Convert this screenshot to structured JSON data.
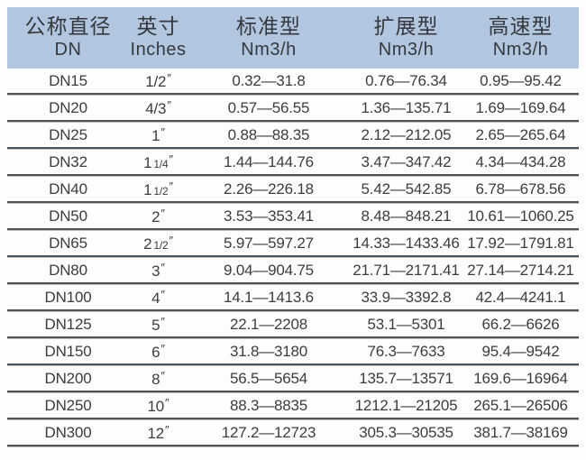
{
  "colors": {
    "header_bg": "#b2c6e0",
    "ink": "#3a3d40",
    "header_ink": "#35383c",
    "line_dark": "#505356",
    "line_light": "#b9bcbe",
    "paper": "#fdfdfd"
  },
  "table": {
    "inch_mark": "″",
    "header": {
      "columns": [
        {
          "line1": "公称直径",
          "line2": "DN"
        },
        {
          "line1": "英寸",
          "line2": "Inches"
        },
        {
          "line1": "标准型",
          "line2": "Nm3/h"
        },
        {
          "line1": "扩展型",
          "line2": "Nm3/h"
        },
        {
          "line1": "高速型",
          "line2": "Nm3/h"
        }
      ]
    },
    "rows": [
      {
        "dn": "DN15",
        "inch_main": "1/2",
        "inch_frac": "",
        "standard": "0.32—31.8",
        "extended": "0.76—76.34",
        "high_speed": "0.95—95.42"
      },
      {
        "dn": "DN20",
        "inch_main": "4/3",
        "inch_frac": "",
        "standard": "0.57—56.55",
        "extended": "1.36—135.71",
        "high_speed": "1.69—169.64"
      },
      {
        "dn": "DN25",
        "inch_main": "1",
        "inch_frac": "",
        "standard": "0.88—88.35",
        "extended": "2.12—212.05",
        "high_speed": "2.65—265.64"
      },
      {
        "dn": "DN32",
        "inch_main": "1",
        "inch_frac": "1/4",
        "standard": "1.44—144.76",
        "extended": "3.47—347.42",
        "high_speed": "4.34—434.28"
      },
      {
        "dn": "DN40",
        "inch_main": "1",
        "inch_frac": "1/2",
        "standard": "2.26—226.18",
        "extended": "5.42—542.85",
        "high_speed": "6.78—678.56"
      },
      {
        "dn": "DN50",
        "inch_main": "2",
        "inch_frac": "",
        "standard": "3.53—353.41",
        "extended": "8.48—848.21",
        "high_speed": "10.61—1060.25"
      },
      {
        "dn": "DN65",
        "inch_main": "2",
        "inch_frac": "1/2",
        "standard": "5.97—597.27",
        "extended": "14.33—1433.46",
        "high_speed": "17.92—1791.81"
      },
      {
        "dn": "DN80",
        "inch_main": "3",
        "inch_frac": "",
        "standard": "9.04—904.75",
        "extended": "21.71—2171.41",
        "high_speed": "27.14—2714.21"
      },
      {
        "dn": "DN100",
        "inch_main": "4",
        "inch_frac": "",
        "standard": "14.1—1413.6",
        "extended": "33.9—3392.8",
        "high_speed": "42.4—4241.1"
      },
      {
        "dn": "DN125",
        "inch_main": "5",
        "inch_frac": "",
        "standard": "22.1—2208",
        "extended": "53.1—5301",
        "high_speed": "66.2—6626"
      },
      {
        "dn": "DN150",
        "inch_main": "6",
        "inch_frac": "",
        "standard": "31.8—3180",
        "extended": "76.3—7633",
        "high_speed": "95.4—9542"
      },
      {
        "dn": "DN200",
        "inch_main": "8",
        "inch_frac": "",
        "standard": "56.5—5654",
        "extended": "135.7—13571",
        "high_speed": "169.6—16964"
      },
      {
        "dn": "DN250",
        "inch_main": "10",
        "inch_frac": "",
        "standard": "88.3—8835",
        "extended": "1212.1—21205",
        "high_speed": "265.1—26506"
      },
      {
        "dn": "DN300",
        "inch_main": "12",
        "inch_frac": "",
        "standard": "127.2—12723",
        "extended": "305.3—30535",
        "high_speed": "381.7—38169"
      }
    ]
  }
}
